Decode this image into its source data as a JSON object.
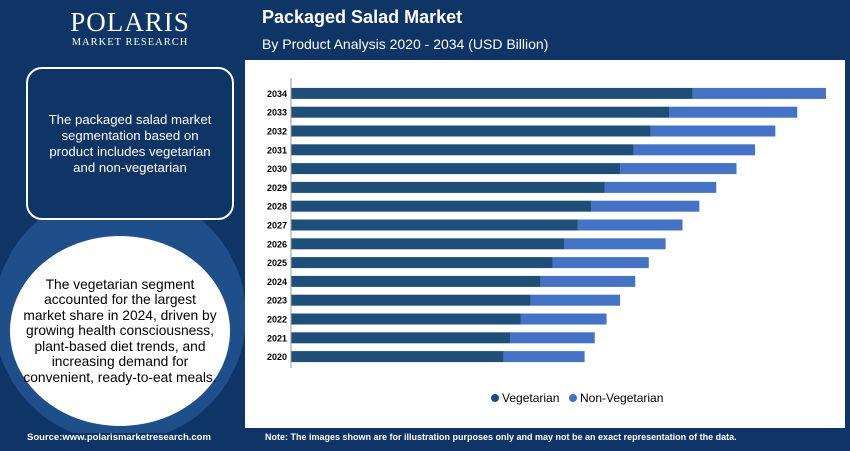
{
  "brand": {
    "name": "POLARIS",
    "sub": "MARKET RESEARCH"
  },
  "header": {
    "title": "Packaged Salad Market",
    "subtitle": "By Product Analysis 2020 - 2034 (USD Billion)"
  },
  "info_box": {
    "text": "The packaged salad market segmentation based on product includes vegetarian and non-vegetarian"
  },
  "highlight": {
    "text": "The vegetarian segment accounted for the largest market share in 2024, driven by growing health consciousness, plant-based diet trends, and increasing demand for convenient, ready-to-eat meals."
  },
  "footer": {
    "source": "Source:www.polarismarketresearch.com",
    "note": "Note: The images shown are for illustration purposes only and may not be an exact representation of the data."
  },
  "colors": {
    "vegetarian": "#1f4e79",
    "non_vegetarian": "#4472c4",
    "background": "#0f3566"
  },
  "chart_data": {
    "type": "bar",
    "orientation": "horizontal",
    "stacked": true,
    "categories": [
      "2034",
      "2033",
      "2032",
      "2031",
      "2030",
      "2029",
      "2028",
      "2027",
      "2026",
      "2025",
      "2024",
      "2023",
      "2022",
      "2021",
      "2020"
    ],
    "series": [
      {
        "name": "Vegetarian",
        "values": [
          23.8,
          22.4,
          21.3,
          20.3,
          19.5,
          18.6,
          17.8,
          17.0,
          16.2,
          15.5,
          14.8,
          14.2,
          13.6,
          13.0,
          12.6
        ]
      },
      {
        "name": "Non-Vegetarian",
        "values": [
          7.9,
          7.6,
          7.4,
          7.2,
          6.9,
          6.6,
          6.4,
          6.2,
          6.0,
          5.7,
          5.6,
          5.3,
          5.1,
          5.0,
          4.8
        ]
      }
    ],
    "xlim": [
      0,
      32
    ],
    "legend": "bottom-center",
    "grid": false
  }
}
